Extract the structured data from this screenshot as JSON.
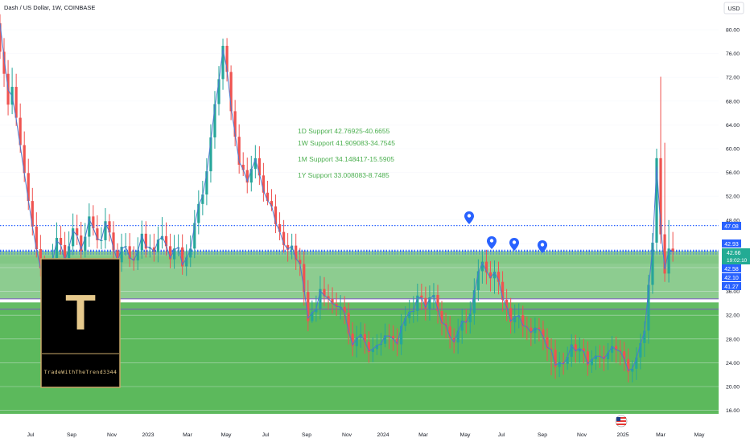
{
  "header": {
    "symbol_title": "Dash / US Dollar, 1W, COINBASE",
    "currency_button": "USD"
  },
  "price_tags": {
    "tag_4708": "47.08",
    "tag_4293": "42.93",
    "tag_4266": "42.66",
    "countdown": "19:02:10",
    "tag_4258": "42.58",
    "tag_4210": "42.10",
    "tag_4127": "41.27"
  },
  "annotations": {
    "support_1d": "1D Support 42.76925-40.6655",
    "support_1w": "1W Support 41.909083-34.7545",
    "support_1m": "1M Support 34.148417-15.5905",
    "support_1y": "1Y Support 33.008083-8.7485"
  },
  "logo": {
    "letter": "T",
    "caption": "TradeWithTheTrend3344"
  },
  "colors": {
    "up": "#26a69a",
    "down": "#ef5350",
    "ma": "#4a78d0",
    "zone_light": "#81c784",
    "zone_dark": "#5cb85c",
    "support_text": "#4caf50",
    "dotted_level": "#2962ff",
    "tag_blue": "#2962ff",
    "tag_green": "#22ab94"
  },
  "chart_data": {
    "type": "candlestick",
    "title": "Dash / US Dollar, 1W, COINBASE",
    "y_axis": {
      "ylim": [
        15,
        82
      ],
      "ticks": [
        "80.00",
        "76.00",
        "72.00",
        "68.00",
        "64.00",
        "60.00",
        "56.00",
        "52.00",
        "48.00",
        "44.00",
        "40.00",
        "36.00",
        "32.00",
        "28.00",
        "24.00",
        "20.00",
        "16.00"
      ],
      "scale": "linear",
      "position": "right"
    },
    "x_axis": {
      "ticks": [
        "Jul",
        "Sep",
        "Nov",
        "2023",
        "Mar",
        "May",
        "Jul",
        "Sep",
        "Nov",
        "2024",
        "Mar",
        "May",
        "Jul",
        "Sep",
        "Nov",
        "2025",
        "Mar",
        "May"
      ]
    },
    "support_zones": [
      {
        "name": "1D Support",
        "low": 40.6655,
        "high": 42.76925
      },
      {
        "name": "1W Support",
        "low": 34.7545,
        "high": 41.909083
      },
      {
        "name": "1M Support",
        "low": 15.5905,
        "high": 34.148417
      },
      {
        "name": "1Y Support",
        "low": 8.7485,
        "high": 33.008083
      }
    ],
    "horizontal_levels": [
      47.08,
      42.93,
      42.66
    ],
    "marker_pins": 4,
    "candles": {
      "weeks_start": "2022-05-22",
      "open": [
        81.1,
        76.3,
        72.6,
        67.4,
        70.4,
        65.2,
        60.6,
        55.9,
        51.2,
        46.9,
        43.1,
        39.9,
        37.3,
        37.9,
        41.6,
        45.0,
        43.8,
        40.7,
        43.6,
        46.6,
        45.4,
        42.8,
        45.2,
        48.6,
        46.6,
        44.6,
        44.6,
        47.8,
        45.9,
        42.9,
        40.9,
        43.5,
        43.6,
        41.5,
        41.2,
        42.9,
        45.7,
        43.2,
        43.4,
        42.6,
        44.7,
        45.3,
        43.6,
        41.4,
        43.2,
        43.4,
        40.2,
        41.7,
        43.2,
        47.5,
        50.7,
        52.3,
        56.2,
        61.9,
        67.5,
        71.7,
        77.3,
        72.9,
        66.3,
        62.0,
        57.3,
        56.4,
        54.3,
        56.6,
        58.4,
        55.5,
        52.6,
        51.2,
        50.3,
        47.3,
        46.0,
        43.8,
        43.0,
        43.7,
        41.3,
        40.6,
        35.9,
        31.0,
        32.5,
        33.1,
        36.4,
        35.2,
        34.7,
        33.9,
        33.4,
        33.4,
        32.4,
        28.9,
        26.8,
        28.2,
        28.8,
        27.5,
        25.8,
        26.3,
        27.0,
        27.2,
        28.6,
        28.5,
        28.0,
        27.1,
        30.2,
        31.5,
        32.6,
        32.7,
        35.3,
        34.9,
        33.1,
        35.0,
        35.4,
        32.7,
        30.6,
        30.1,
        28.2,
        27.4,
        29.4,
        31.1,
        30.8,
        32.3,
        36.2,
        39.4,
        41.0,
        39.2,
        38.2,
        39.3,
        37.6,
        34.6,
        33.2,
        30.8,
        31.8,
        32.0,
        30.1,
        29.9,
        29.0,
        29.9,
        29.6,
        28.3,
        26.4,
        26.2,
        23.3,
        24.1,
        23.8,
        25.0,
        27.1,
        25.9,
        26.4,
        25.9,
        23.6,
        24.6,
        25.2,
        25.1,
        24.6,
        25.7,
        26.8,
        26.1,
        25.9,
        24.6,
        22.5,
        23.0,
        24.9,
        27.3,
        29.4,
        37.1,
        44.2,
        58.4,
        45.6,
        39.0,
        43.2
      ],
      "close": [
        76.3,
        72.6,
        67.4,
        70.4,
        65.2,
        60.6,
        55.9,
        51.2,
        46.9,
        43.1,
        39.9,
        37.3,
        37.9,
        41.6,
        45.0,
        43.8,
        40.7,
        43.6,
        46.6,
        45.4,
        42.8,
        45.2,
        48.6,
        46.6,
        44.6,
        44.6,
        47.8,
        45.9,
        42.9,
        40.9,
        43.5,
        43.6,
        41.5,
        41.2,
        42.9,
        45.7,
        43.2,
        43.4,
        42.6,
        44.7,
        45.3,
        43.6,
        41.4,
        43.2,
        43.4,
        40.2,
        41.7,
        43.2,
        47.5,
        50.7,
        52.3,
        56.2,
        61.9,
        67.5,
        71.7,
        77.3,
        72.9,
        66.3,
        62.0,
        57.3,
        56.4,
        54.3,
        56.6,
        58.4,
        55.5,
        52.6,
        51.2,
        50.3,
        47.3,
        46.0,
        43.8,
        43.0,
        43.7,
        41.3,
        40.6,
        35.9,
        31.0,
        32.5,
        33.1,
        36.4,
        35.2,
        34.7,
        33.9,
        33.4,
        33.4,
        32.4,
        28.9,
        26.8,
        28.2,
        28.8,
        27.5,
        25.8,
        26.3,
        27.0,
        27.2,
        28.6,
        28.5,
        28.0,
        27.1,
        30.2,
        31.5,
        32.6,
        32.7,
        35.3,
        34.9,
        33.1,
        35.0,
        35.4,
        32.7,
        30.6,
        30.1,
        28.2,
        27.4,
        29.4,
        31.1,
        30.8,
        32.3,
        36.2,
        39.4,
        41.0,
        39.2,
        38.2,
        39.3,
        37.6,
        34.6,
        33.2,
        30.8,
        31.8,
        32.0,
        30.1,
        29.9,
        29.0,
        29.9,
        29.6,
        28.3,
        26.4,
        26.2,
        23.3,
        24.1,
        23.8,
        25.0,
        27.1,
        25.9,
        26.4,
        25.9,
        23.6,
        24.6,
        25.2,
        25.1,
        24.6,
        25.7,
        26.8,
        26.1,
        25.9,
        24.6,
        22.5,
        23.0,
        24.9,
        27.3,
        29.4,
        37.1,
        44.2,
        58.4,
        45.6,
        39.0,
        43.2,
        42.66
      ],
      "high": [
        82.6,
        78.6,
        74.9,
        73.6,
        72.6,
        67.6,
        62.9,
        58.3,
        53.4,
        49.3,
        45.5,
        42.0,
        40.5,
        44.0,
        47.6,
        47.0,
        46.0,
        46.1,
        49.1,
        48.9,
        47.7,
        47.5,
        50.8,
        50.5,
        48.8,
        46.8,
        50.0,
        49.0,
        47.8,
        44.1,
        45.7,
        45.8,
        45.8,
        43.6,
        45.1,
        47.9,
        47.8,
        45.6,
        45.7,
        46.9,
        48.5,
        47.6,
        45.7,
        45.5,
        45.6,
        45.6,
        43.9,
        45.4,
        49.7,
        53.0,
        54.6,
        58.4,
        64.1,
        69.7,
        73.9,
        78.5,
        78.6,
        74.0,
        68.2,
        64.1,
        59.4,
        58.5,
        58.8,
        60.6,
        60.4,
        57.6,
        54.6,
        53.2,
        52.3,
        49.3,
        48.0,
        45.8,
        45.7,
        45.7,
        43.3,
        42.8,
        37.9,
        34.5,
        35.3,
        38.6,
        38.4,
        37.2,
        36.7,
        35.8,
        35.4,
        35.2,
        34.1,
        30.8,
        30.2,
        30.8,
        30.6,
        29.3,
        28.3,
        28.8,
        29.0,
        30.6,
        30.5,
        30.3,
        29.8,
        32.2,
        33.5,
        34.6,
        35.2,
        37.3,
        37.3,
        36.8,
        37.0,
        37.4,
        37.1,
        34.4,
        32.4,
        31.9,
        29.8,
        31.4,
        33.1,
        33.0,
        34.3,
        38.2,
        41.4,
        43.0,
        43.0,
        41.1,
        41.2,
        41.0,
        39.4,
        36.4,
        34.9,
        33.8,
        34.0,
        33.6,
        31.8,
        31.5,
        31.6,
        31.5,
        31.1,
        29.8,
        28.1,
        27.9,
        25.8,
        25.7,
        26.7,
        28.8,
        28.7,
        28.3,
        28.0,
        27.6,
        26.1,
        26.8,
        27.0,
        26.9,
        27.3,
        28.5,
        28.4,
        27.8,
        27.5,
        26.4,
        24.4,
        26.6,
        28.9,
        31.0,
        38.8,
        45.8,
        60.0,
        72.1,
        61.0,
        48.0,
        46.0
      ],
      "low": [
        75.1,
        70.4,
        65.6,
        65.8,
        63.8,
        59.3,
        54.4,
        49.7,
        45.4,
        41.7,
        38.5,
        36.2,
        36.3,
        37.2,
        40.5,
        42.2,
        39.5,
        39.3,
        42.1,
        43.8,
        41.3,
        41.7,
        43.5,
        45.4,
        43.2,
        43.1,
        43.2,
        44.4,
        41.4,
        39.2,
        39.3,
        42.0,
        40.1,
        39.5,
        39.6,
        41.5,
        41.7,
        41.7,
        41.0,
        40.9,
        43.2,
        42.0,
        39.9,
        39.8,
        41.9,
        38.8,
        38.6,
        40.1,
        41.6,
        45.6,
        48.8,
        50.5,
        54.3,
        60.0,
        65.6,
        69.9,
        71.3,
        64.8,
        60.4,
        55.8,
        55.4,
        52.5,
        52.8,
        55.0,
        53.9,
        51.1,
        50.5,
        49.5,
        45.8,
        44.6,
        42.5,
        41.0,
        41.4,
        39.6,
        38.6,
        33.6,
        29.3,
        30.7,
        30.9,
        31.3,
        33.5,
        32.9,
        32.3,
        31.9,
        31.3,
        30.5,
        27.1,
        25.1,
        24.9,
        26.5,
        25.5,
        24.0,
        24.1,
        25.3,
        25.2,
        26.6,
        26.3,
        26.0,
        25.1,
        25.3,
        29.3,
        30.6,
        30.7,
        30.9,
        32.9,
        31.1,
        31.1,
        33.1,
        30.6,
        28.6,
        28.1,
        26.4,
        25.6,
        25.5,
        27.2,
        28.9,
        28.9,
        30.4,
        34.4,
        37.3,
        37.2,
        36.0,
        35.6,
        35.5,
        32.6,
        31.0,
        28.9,
        29.0,
        29.8,
        28.3,
        27.8,
        26.8,
        27.2,
        27.6,
        26.1,
        24.3,
        21.9,
        21.3,
        21.6,
        22.0,
        22.8,
        23.3,
        24.0,
        24.0,
        23.9,
        21.8,
        22.3,
        22.8,
        23.1,
        22.6,
        22.8,
        24.2,
        24.0,
        23.6,
        22.6,
        20.7,
        20.7,
        21.1,
        22.9,
        25.0,
        27.2,
        35.6,
        42.5,
        44.0,
        37.6,
        37.5,
        41.0
      ]
    },
    "moving_average": {
      "name": "",
      "values": [
        81.1,
        75.4,
        69.9,
        68.8,
        65.0,
        60.4,
        55.9,
        51.3,
        46.9,
        43.1,
        39.9,
        37.4,
        37.8,
        41.2,
        44.5,
        43.8,
        41.1,
        43.3,
        46.2,
        45.4,
        43.1,
        45.0,
        48.2,
        46.7,
        44.8,
        44.6,
        47.5,
        46.0,
        43.2,
        41.1,
        43.2,
        43.5,
        41.7,
        41.2,
        42.7,
        45.4,
        43.5,
        43.4,
        42.7,
        44.5,
        45.2,
        43.8,
        41.6,
        43.0,
        43.4,
        40.5,
        41.5,
        43.0,
        47.1,
        50.4,
        52.1,
        55.8,
        61.3,
        67.0,
        71.3,
        76.7,
        73.3,
        67.0,
        62.5,
        57.8,
        56.5,
        54.5,
        56.4,
        58.2,
        55.8,
        52.9,
        51.3,
        50.4,
        47.6,
        46.1,
        44.0,
        43.1,
        43.6,
        41.5,
        40.7,
        36.4,
        31.5,
        32.4,
        33.0,
        36.1,
        35.3,
        34.8,
        34.0,
        33.5,
        33.4,
        32.5,
        29.3,
        27.0,
        28.1,
        28.7,
        27.6,
        26.0,
        26.3,
        26.9,
        27.2,
        28.5,
        28.5,
        28.0,
        27.2,
        29.9,
        31.4,
        32.5,
        32.7,
        35.0,
        34.9,
        33.3,
        34.8,
        35.3,
        33.0,
        30.8,
        30.3,
        28.4,
        27.5,
        29.2,
        30.9,
        30.8,
        32.2,
        35.8,
        39.1,
        40.8,
        39.4,
        38.3,
        39.2,
        37.9,
        34.9,
        33.4,
        31.0,
        31.7,
        31.9,
        30.3,
        30.0,
        29.1,
        29.8,
        29.6,
        28.4,
        26.6,
        26.2,
        23.6,
        24.0,
        23.8,
        24.9,
        26.9,
        26.0,
        26.4,
        25.9,
        23.8,
        24.5,
        25.1,
        25.1,
        24.7,
        25.6,
        26.7,
        26.2,
        25.9,
        24.7,
        22.7,
        23.0,
        24.7,
        27.1,
        29.2,
        36.3,
        43.5,
        57.0,
        46.9,
        39.7,
        42.9,
        42.7
      ]
    }
  }
}
